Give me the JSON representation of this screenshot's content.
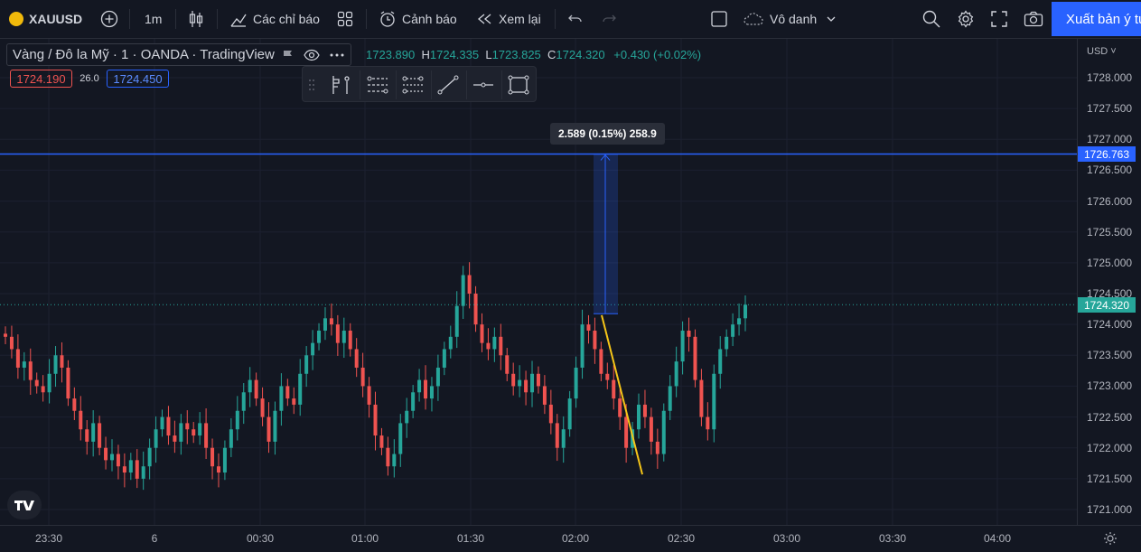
{
  "toolbar": {
    "symbol": "XAUUSD",
    "interval": "1m",
    "indicators_label": "Các chỉ báo",
    "alert_label": "Cảnh báo",
    "replay_label": "Xem lại",
    "layout_name": "Vô danh",
    "publish_label": "Xuất bản ý tư"
  },
  "legend": {
    "title": "Vàng / Đô la Mỹ · 1 · OANDA · TradingView",
    "o_val": "1723.890",
    "h_val": "1724.335",
    "l_val": "1723.825",
    "c_val": "1724.320",
    "change": "+0.430 (+0.02%)",
    "sell_price": "1724.190",
    "spread": "26.0",
    "buy_price": "1724.450"
  },
  "measure": {
    "label": "2.589 (0.15%) 258.9"
  },
  "price_axis": {
    "currency": "USD",
    "labels": [
      "1728.000",
      "1727.500",
      "1727.000",
      "1726.500",
      "1726.000",
      "1725.500",
      "1725.000",
      "1724.500",
      "1724.000",
      "1723.500",
      "1723.000",
      "1722.500",
      "1722.000",
      "1721.500",
      "1721.000"
    ],
    "line_tag": "1726.763",
    "last_price_tag": "1724.320"
  },
  "time_axis": {
    "labels": [
      "23:30",
      "6",
      "00:30",
      "01:00",
      "01:30",
      "02:00",
      "02:30",
      "03:00",
      "03:30",
      "04:00"
    ]
  },
  "colors": {
    "up": "#26a69a",
    "down": "#ef5350",
    "horizontal_line": "#2962ff",
    "trend_line": "#f5c518",
    "accent": "#2962ff"
  },
  "chart_data": {
    "type": "candlestick",
    "symbol": "XAUUSD",
    "last_price": 1724.32,
    "horizontal_line": 1726.763,
    "ylim": [
      1720.8,
      1728.3
    ],
    "closes": [
      1723.8,
      1723.6,
      1723.3,
      1723.4,
      1723.1,
      1723.0,
      1722.9,
      1723.2,
      1723.5,
      1723.3,
      1722.8,
      1722.6,
      1722.3,
      1722.1,
      1722.4,
      1722.0,
      1721.8,
      1721.9,
      1721.7,
      1721.6,
      1721.8,
      1721.5,
      1721.7,
      1722.0,
      1722.3,
      1722.5,
      1722.2,
      1722.1,
      1722.4,
      1722.3,
      1722.2,
      1722.4,
      1722.0,
      1721.7,
      1721.6,
      1722.0,
      1722.3,
      1722.6,
      1722.9,
      1723.1,
      1722.8,
      1722.5,
      1722.1,
      1722.6,
      1723.0,
      1722.8,
      1722.7,
      1723.2,
      1723.5,
      1723.7,
      1723.9,
      1724.1,
      1724.0,
      1723.7,
      1723.9,
      1723.6,
      1723.3,
      1723.0,
      1722.7,
      1722.2,
      1722.0,
      1721.7,
      1721.9,
      1722.4,
      1722.6,
      1722.9,
      1723.1,
      1722.8,
      1723.0,
      1723.3,
      1723.6,
      1723.8,
      1724.3,
      1724.8,
      1724.5,
      1724.0,
      1723.7,
      1723.6,
      1723.8,
      1723.5,
      1723.2,
      1723.0,
      1723.1,
      1722.9,
      1723.2,
      1723.0,
      1722.7,
      1722.4,
      1722.0,
      1722.3,
      1722.8,
      1723.3,
      1724.0,
      1723.9,
      1723.6,
      1723.2,
      1723.1,
      1722.8,
      1722.5,
      1722.0,
      1722.3,
      1722.7,
      1722.5,
      1722.1,
      1721.9,
      1722.6,
      1723.0,
      1723.4,
      1723.9,
      1723.8,
      1723.1,
      1722.5,
      1722.3,
      1723.2,
      1723.6,
      1723.8,
      1724.0,
      1724.1,
      1724.32
    ],
    "trend_line": {
      "start_price": 1724.15,
      "end_price": 1721.57
    },
    "measure_range": {
      "low": 1724.174,
      "high": 1726.763
    }
  }
}
